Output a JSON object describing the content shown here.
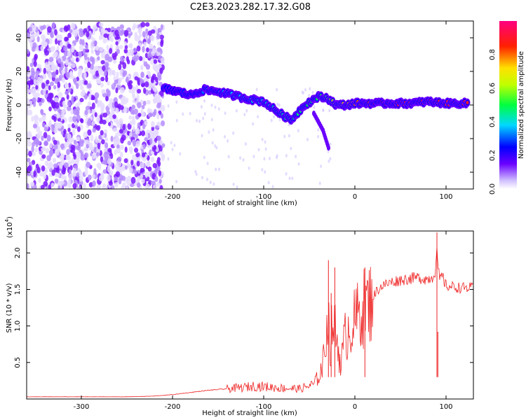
{
  "figure": {
    "title": "C2E3.2023.282.17.32.G08"
  },
  "chart_data": [
    {
      "type": "heatmap",
      "xlabel": "Height of straight line (km)",
      "ylabel": "Frequency (Hz)",
      "xlim": [
        -360,
        130
      ],
      "ylim": [
        -50,
        50
      ],
      "x_ticks": [
        -300,
        -200,
        -100,
        0,
        100
      ],
      "y_ticks": [
        -40,
        -20,
        0,
        20,
        40
      ],
      "grid": false,
      "colormap": [
        "#ffffff",
        "#7b00ff",
        "#0000ff",
        "#00ffff",
        "#00ff00",
        "#ffff00",
        "#ff0000",
        "#ff0080"
      ],
      "noise_region": {
        "x_range": [
          -360,
          -210
        ],
        "y_range": [
          -50,
          48
        ],
        "amplitude": 0.1
      },
      "signal_trace": [
        {
          "x": -210,
          "y": 10,
          "amplitude": 0.25
        },
        {
          "x": -195,
          "y": 8,
          "amplitude": 0.28
        },
        {
          "x": -180,
          "y": 6,
          "amplitude": 0.3
        },
        {
          "x": -165,
          "y": 9,
          "amplitude": 0.32
        },
        {
          "x": -150,
          "y": 8,
          "amplitude": 0.35
        },
        {
          "x": -135,
          "y": 6,
          "amplitude": 0.38
        },
        {
          "x": -120,
          "y": 4,
          "amplitude": 0.4
        },
        {
          "x": -100,
          "y": 2,
          "amplitude": 0.42
        },
        {
          "x": -85,
          "y": -4,
          "amplitude": 0.45
        },
        {
          "x": -70,
          "y": -9,
          "amplitude": 0.45
        },
        {
          "x": -55,
          "y": 0,
          "amplitude": 0.5
        },
        {
          "x": -40,
          "y": 5,
          "amplitude": 0.5
        },
        {
          "x": -30,
          "y": 4,
          "amplitude": 0.55
        },
        {
          "x": -20,
          "y": 0,
          "amplitude": 0.7
        },
        {
          "x": -10,
          "y": 0,
          "amplitude": 0.75
        },
        {
          "x": 0,
          "y": 1,
          "amplitude": 0.8
        },
        {
          "x": 20,
          "y": 1,
          "amplitude": 0.85
        },
        {
          "x": 40,
          "y": 1,
          "amplitude": 0.9
        },
        {
          "x": 60,
          "y": 1,
          "amplitude": 0.9
        },
        {
          "x": 80,
          "y": 2,
          "amplitude": 0.9
        },
        {
          "x": 100,
          "y": 1,
          "amplitude": 0.9
        },
        {
          "x": 125,
          "y": 1,
          "amplitude": 0.9
        }
      ],
      "side_branch": [
        {
          "x": -45,
          "y": -5
        },
        {
          "x": -35,
          "y": -15
        },
        {
          "x": -28,
          "y": -27
        }
      ],
      "colorbar": {
        "label": "Normalized spectral amplitude",
        "ticks": [
          "0.0",
          "0.2",
          "0.4",
          "0.6",
          "0.8"
        ],
        "tick_values": [
          0,
          0.2,
          0.4,
          0.6,
          0.8
        ],
        "range": [
          0,
          1
        ]
      }
    },
    {
      "type": "line",
      "xlabel": "Height of straight line (km)",
      "ylabel": "SNR (10 * v/v)",
      "yscale_note": "(x10",
      "yscale_exp": "4",
      "yscale_close": ")",
      "xlim": [
        -360,
        130
      ],
      "ylim": [
        0,
        2.3
      ],
      "x_ticks": [
        -300,
        -200,
        -100,
        0,
        100
      ],
      "y_ticks": [
        "0.5",
        "1.0",
        "1.5",
        "2.0"
      ],
      "y_tick_values": [
        0.5,
        1.0,
        1.5,
        2.0
      ],
      "line_color": "#ee2222",
      "series": [
        {
          "x": [
            -360,
            -300,
            -250,
            -220,
            -200,
            -180,
            -160,
            -140,
            -120,
            -110,
            -100,
            -80,
            -60,
            -45,
            -38,
            -33,
            -30,
            -27,
            -24,
            -20,
            -15,
            -10,
            -5,
            0,
            5,
            10,
            15,
            20,
            25,
            30,
            40,
            50,
            60,
            70,
            80,
            85,
            88,
            90,
            93,
            95,
            100,
            110,
            120,
            130
          ],
          "y": [
            0.03,
            0.03,
            0.03,
            0.04,
            0.06,
            0.09,
            0.12,
            0.14,
            0.16,
            0.18,
            0.17,
            0.15,
            0.14,
            0.2,
            0.35,
            0.6,
            1.3,
            0.7,
            1.1,
            0.8,
            0.5,
            0.9,
            1.0,
            1.05,
            1.2,
            1.25,
            1.3,
            1.4,
            1.5,
            1.55,
            1.6,
            1.63,
            1.65,
            1.66,
            1.64,
            1.67,
            1.75,
            2.0,
            1.6,
            1.7,
            1.55,
            1.53,
            1.52,
            1.52
          ]
        }
      ],
      "spikes": [
        {
          "x": -29,
          "y": 1.9
        },
        {
          "x": -26,
          "y": 1.45
        },
        {
          "x": -22,
          "y": 1.8
        },
        {
          "x": 11,
          "y": 1.8
        },
        {
          "x": 90,
          "y": 2.28
        },
        {
          "x": 91,
          "y": 0.92
        }
      ]
    }
  ]
}
